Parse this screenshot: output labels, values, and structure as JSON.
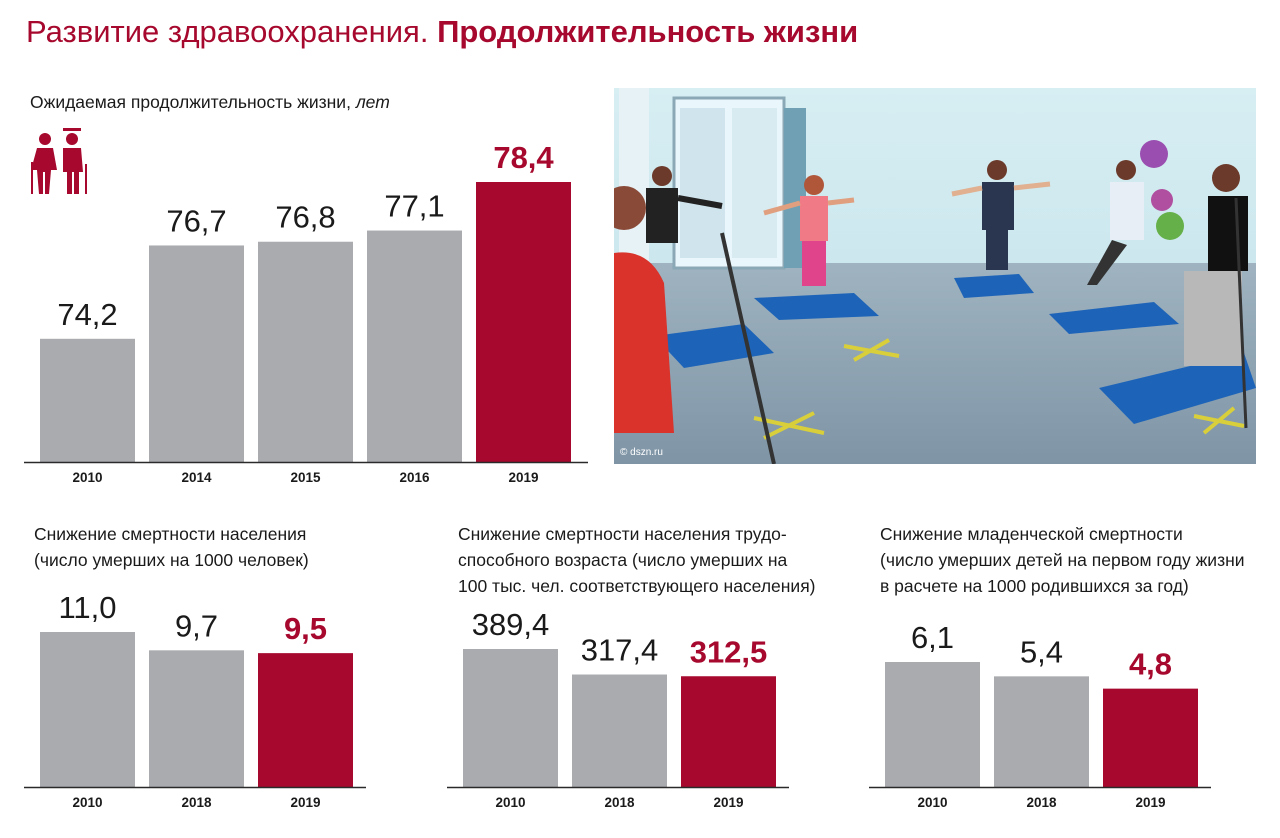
{
  "header": {
    "title_light": "Развитие здравоохранения.",
    "title_bold": "Продолжительность жизни"
  },
  "colors": {
    "accent": "#a6092d",
    "bar": "#a9abae",
    "axis": "#2a2a2a",
    "text": "#1a1a1a"
  },
  "icons": {
    "chart1": "elderly-couple-icon"
  },
  "photo": {
    "credit": "© dszn.ru"
  },
  "chart_data": [
    {
      "id": "life",
      "type": "bar",
      "title": "Ожидаемая продолжительность жизни,",
      "unit": "лет",
      "title_lines": [],
      "categories": [
        "2010",
        "2014",
        "2015",
        "2016",
        "2019"
      ],
      "values": [
        74.2,
        76.7,
        76.8,
        77.1,
        78.4
      ],
      "value_labels": [
        "74,2",
        "76,7",
        "76,8",
        "77,1",
        "78,4"
      ],
      "highlight_index": 4,
      "ylim": [
        70.9,
        79.1
      ]
    },
    {
      "id": "mortality",
      "type": "bar",
      "title_lines": [
        "Снижение смертности населения",
        "(число умерших на 1000 человек)"
      ],
      "categories": [
        "2010",
        "2018",
        "2019"
      ],
      "values": [
        11.0,
        9.7,
        9.5
      ],
      "value_labels": [
        "11,0",
        "9,7",
        "9,5"
      ],
      "highlight_index": 2,
      "ylim": [
        0,
        12.4
      ]
    },
    {
      "id": "working",
      "type": "bar",
      "title_lines": [
        "Снижение смертности населения трудо-",
        "способного возраста (число умерших на",
        "100 тыс. чел. соответствующего населения)"
      ],
      "categories": [
        "2010",
        "2018",
        "2019"
      ],
      "values": [
        389.4,
        317.4,
        312.5
      ],
      "value_labels": [
        "389,4",
        "317,4",
        "312,5"
      ],
      "highlight_index": 2,
      "ylim": [
        0,
        448
      ]
    },
    {
      "id": "infant",
      "type": "bar",
      "title_lines": [
        "Снижение младенческой смертности",
        "(число умерших детей на первом году жизни",
        "в расчете на 1000 родившихся за год)"
      ],
      "categories": [
        "2010",
        "2018",
        "2019"
      ],
      "values": [
        6.1,
        5.4,
        4.8
      ],
      "value_labels": [
        "6,1",
        "5,4",
        "4,8"
      ],
      "highlight_index": 2,
      "ylim": [
        0,
        7.2
      ]
    }
  ]
}
